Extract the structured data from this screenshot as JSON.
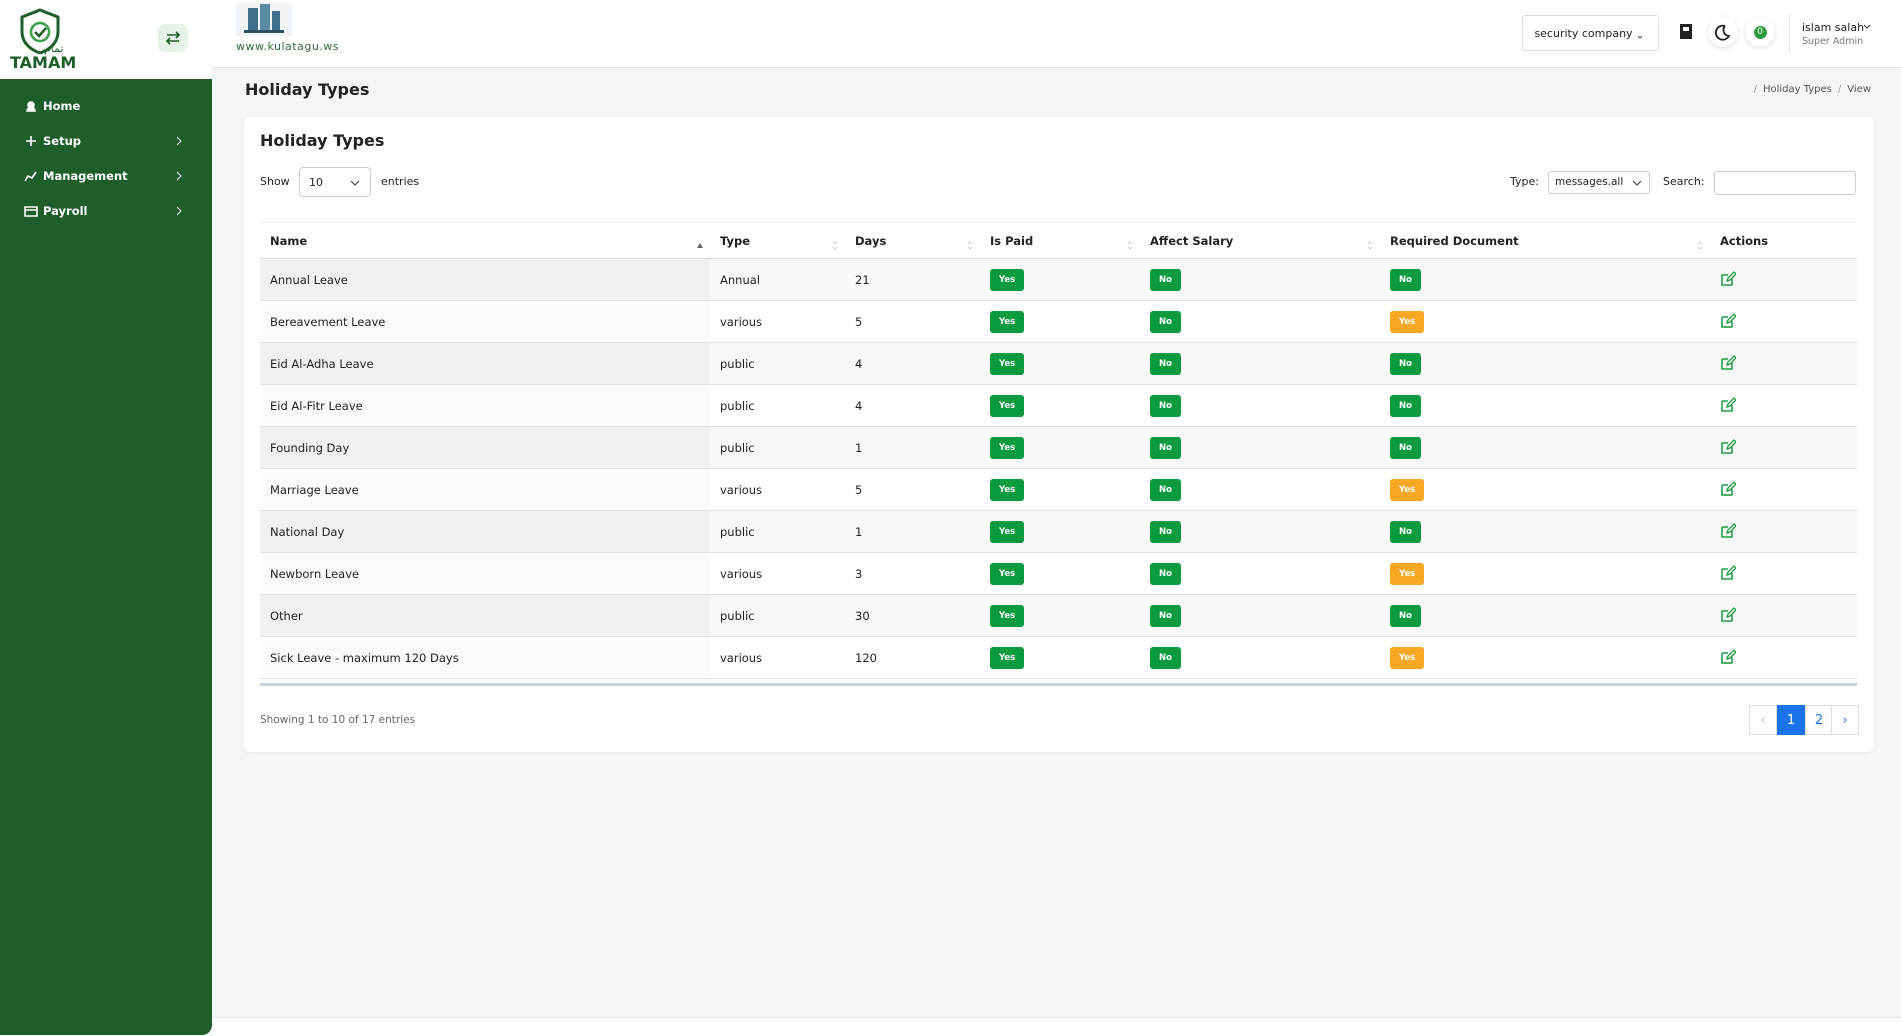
{
  "sidebar": {
    "logo_ar": "تمام",
    "logo_text": "TAMAM",
    "menu": [
      "Home",
      "Setup",
      "Management",
      "Payroll"
    ]
  },
  "header": {
    "site": "www.kulatagu.ws",
    "company": "security company",
    "notification_count": "0",
    "user_name": "islam salah",
    "user_role": "Super Admin"
  },
  "page": {
    "title": "Holiday Types",
    "breadcrumb": [
      "Holiday Types",
      "View"
    ]
  },
  "card": {
    "title": "Holiday Types",
    "show": "Show",
    "page_length": "10",
    "entries": "entries",
    "type_label": "Type:",
    "type_value": "messages.all",
    "search_label": "Search:"
  },
  "table": {
    "columns": [
      "Name",
      "Type",
      "Days",
      "Is Paid",
      "Affect Salary",
      "Required Document",
      "Actions"
    ],
    "rows": [
      [
        "Annual Leave",
        "Annual",
        "21",
        "Yes",
        "No",
        "No"
      ],
      [
        "Bereavement Leave",
        "various",
        "5",
        "Yes",
        "No",
        "Yes"
      ],
      [
        "Eid Al-Adha Leave",
        "public",
        "4",
        "Yes",
        "No",
        "No"
      ],
      [
        "Eid Al-Fitr Leave",
        "public",
        "4",
        "Yes",
        "No",
        "No"
      ],
      [
        "Founding Day",
        "public",
        "1",
        "Yes",
        "No",
        "No"
      ],
      [
        "Marriage Leave",
        "various",
        "5",
        "Yes",
        "No",
        "Yes"
      ],
      [
        "National Day",
        "public",
        "1",
        "Yes",
        "No",
        "No"
      ],
      [
        "Newborn Leave",
        "various",
        "3",
        "Yes",
        "No",
        "Yes"
      ],
      [
        "Other",
        "public",
        "30",
        "Yes",
        "No",
        "No"
      ],
      [
        "Sick Leave - maximum 120 Days",
        "various",
        "120",
        "Yes",
        "No",
        "Yes"
      ]
    ]
  },
  "footer": {
    "info": "Showing 1 to 10 of 17 entries",
    "prev": "‹",
    "pages": [
      "1",
      "2"
    ],
    "next": "›"
  }
}
